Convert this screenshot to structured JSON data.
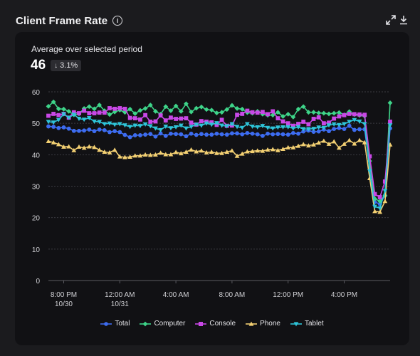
{
  "header": {
    "title": "Client Frame Rate",
    "info_icon": "info-icon",
    "expand_icon": "expand-icon",
    "download_icon": "download-icon"
  },
  "summary": {
    "label": "Average over selected period",
    "value": "46",
    "delta": "3.1%",
    "delta_direction": "down"
  },
  "colors": {
    "Total": "#3d6cf0",
    "Computer": "#3ed489",
    "Console": "#c948e6",
    "Phone": "#f2cf72",
    "Tablet": "#2ec4d8",
    "grid": "#3a3a40",
    "card": "#111114",
    "background": "#1b1b1e"
  },
  "chart_data": {
    "type": "line",
    "ylim": [
      0,
      60
    ],
    "yticks": [
      "0",
      "10",
      "20",
      "30",
      "40",
      "50",
      "60"
    ],
    "xticks": [
      {
        "label": "8:00 PM",
        "sublabel": "10/30",
        "at": 3
      },
      {
        "label": "12:00 AM",
        "sublabel": "10/31",
        "at": 14
      },
      {
        "label": "4:00 AM",
        "sublabel": "",
        "at": 25
      },
      {
        "label": "8:00 AM",
        "sublabel": "",
        "at": 36
      },
      {
        "label": "12:00 PM",
        "sublabel": "",
        "at": 47
      },
      {
        "label": "4:00 PM",
        "sublabel": "",
        "at": 58
      }
    ],
    "grid": true,
    "legend_position": "bottom-center",
    "series": [
      {
        "name": "Total",
        "marker": "circle",
        "values": [
          49,
          48.9,
          48.5,
          48.7,
          48.3,
          47.6,
          47.6,
          47.7,
          48,
          47.5,
          48,
          47.8,
          47.2,
          47.5,
          47.2,
          46.3,
          45.6,
          46.2,
          46.2,
          46.4,
          46.6,
          45.8,
          46.8,
          46,
          46.7,
          46.6,
          46.5,
          45.9,
          46.7,
          46.3,
          46.6,
          46.4,
          46.4,
          46.7,
          46.5,
          46.4,
          46.8,
          46.8,
          46.5,
          46.9,
          46.7,
          46.5,
          46,
          46.7,
          46.5,
          46.6,
          46.5,
          46.4,
          46.9,
          46.7,
          47.4,
          47.7,
          47.3,
          47.4,
          48,
          47.5,
          48.2,
          48.5,
          48.2,
          49.2,
          47.9,
          48.1,
          48.1,
          36,
          25,
          24.3,
          27,
          48.4
        ]
      },
      {
        "name": "Computer",
        "marker": "diamond",
        "values": [
          55.4,
          56.8,
          54.6,
          54.5,
          53.8,
          52.7,
          53,
          54.7,
          55.3,
          54.6,
          55.8,
          54,
          52.8,
          53.6,
          54.2,
          53.5,
          54.5,
          53.1,
          54.1,
          54.7,
          55.8,
          53.8,
          52.9,
          55.3,
          54,
          55.5,
          53.8,
          56.2,
          53.6,
          54.8,
          55.2,
          54.4,
          54.2,
          53.3,
          53.5,
          54.4,
          55.7,
          54.7,
          54.5,
          53.4,
          53.2,
          53.8,
          52.9,
          52.6,
          52.6,
          53.5,
          52.2,
          52.9,
          52,
          54.5,
          55.3,
          53.5,
          53.5,
          53.3,
          53.2,
          53,
          53.2,
          53.4,
          52.7,
          53.7,
          52.8,
          52.5,
          52.3,
          38,
          26,
          25.2,
          27,
          56.5
        ]
      },
      {
        "name": "Console",
        "marker": "square",
        "values": [
          52.4,
          53,
          52.6,
          53,
          51.8,
          53.5,
          53.2,
          54,
          53.2,
          53.2,
          53.4,
          53.4,
          54.8,
          54.6,
          54.8,
          54.6,
          51.7,
          51.6,
          51.2,
          52.6,
          50.5,
          50.6,
          52.5,
          50.9,
          51.8,
          51.4,
          51.5,
          51.6,
          50.2,
          49.6,
          50.7,
          50.5,
          50.3,
          49.5,
          51.1,
          49.2,
          49.3,
          52.7,
          53,
          54,
          53.5,
          53.4,
          53.6,
          52.9,
          53.8,
          51.6,
          50.6,
          50,
          49.2,
          49.8,
          50.5,
          49.7,
          51.4,
          51.9,
          50,
          50.2,
          51.5,
          52.2,
          52.6,
          53,
          52.9,
          52.8,
          52.7,
          39.5,
          27.5,
          26.5,
          31.5,
          50.5
        ]
      },
      {
        "name": "Phone",
        "marker": "triangle",
        "values": [
          44.3,
          43.9,
          43.3,
          42.5,
          42.6,
          41.4,
          42.5,
          42.2,
          42.6,
          42.4,
          41.5,
          40.9,
          40.7,
          41.5,
          39.4,
          39.2,
          39.3,
          39.7,
          39.7,
          40,
          39.9,
          40,
          40.6,
          40.1,
          40.1,
          40.8,
          40.4,
          40.9,
          41.6,
          41,
          41.3,
          40.7,
          40.9,
          40.5,
          40.5,
          40.9,
          41.3,
          39.6,
          40.3,
          41,
          41.1,
          41.3,
          41.2,
          41.6,
          41.7,
          41.4,
          41.8,
          42.3,
          42.3,
          42.8,
          43.3,
          42.9,
          43.2,
          43.8,
          44.4,
          43.4,
          44.2,
          42.2,
          43.4,
          44.6,
          43.5,
          44.6,
          43.9,
          32.5,
          22,
          21.8,
          25.2,
          43.2
        ]
      },
      {
        "name": "Tablet",
        "marker": "triangle-down",
        "values": [
          50.5,
          50.3,
          51.1,
          52.9,
          51.8,
          52.8,
          51.5,
          51.2,
          51.7,
          50.6,
          50.5,
          49.8,
          50,
          49.6,
          49.8,
          49.4,
          48.9,
          49.3,
          49.2,
          49.7,
          49.1,
          48.4,
          47.9,
          49,
          48.5,
          48.8,
          49.3,
          48.4,
          48.9,
          49.6,
          49.3,
          50,
          49.6,
          50.1,
          49.3,
          49.1,
          49.8,
          48.9,
          48.6,
          49.8,
          49,
          48.8,
          49.2,
          48.6,
          48.4,
          48.7,
          48.8,
          48.8,
          48.4,
          48.8,
          48.2,
          48.2,
          48.3,
          48.7,
          48.6,
          49.4,
          49.7,
          49.5,
          49.8,
          50.5,
          51.1,
          50.6,
          49.8,
          34.8,
          23.5,
          23,
          28.5,
          49.4
        ]
      }
    ]
  }
}
